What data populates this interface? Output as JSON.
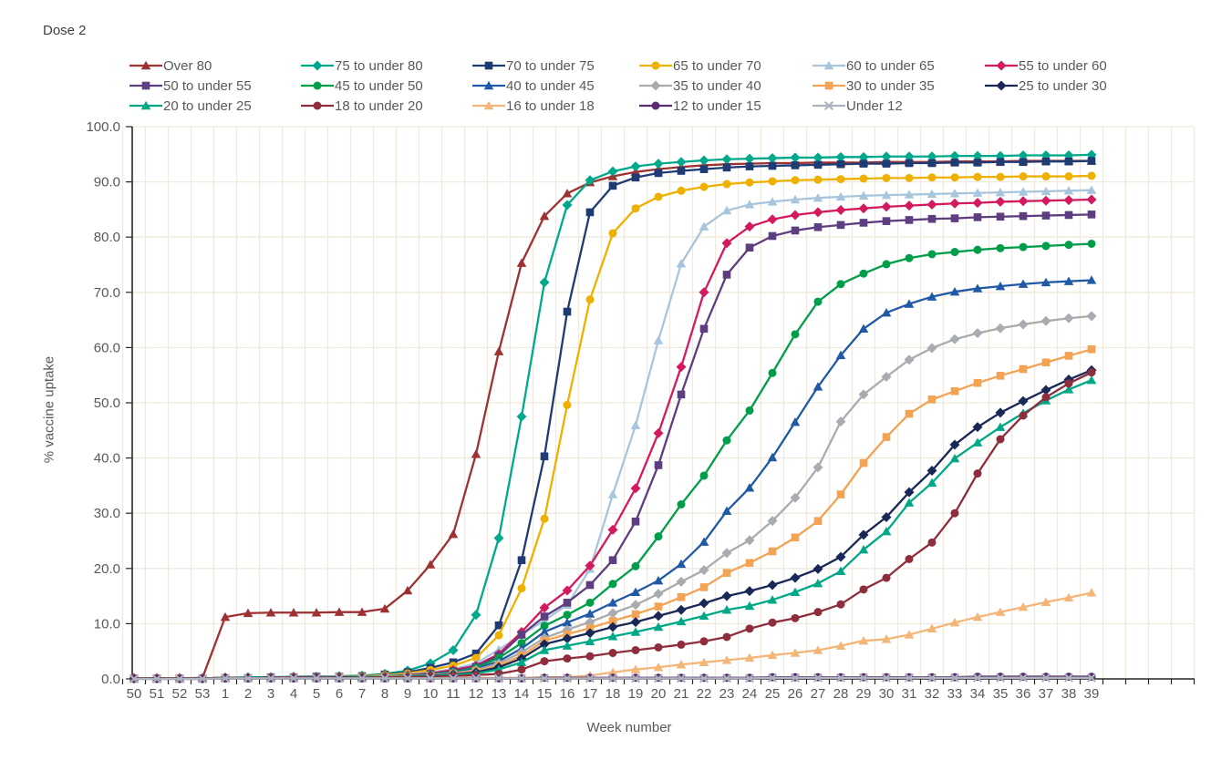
{
  "chart_data": {
    "type": "line",
    "title": "Dose 2",
    "xlabel": "Week number",
    "ylabel": "% vaccine uptake",
    "ylim": [
      0,
      100
    ],
    "y_tick_step": 10,
    "y_tick_decimals": 1,
    "grid": true,
    "legend_position": "top",
    "gridline_color": "#efe9de",
    "axis_color": "#262626",
    "tick_label_color": "#595959",
    "categories": [
      "50",
      "51",
      "52",
      "53",
      "1",
      "2",
      "3",
      "4",
      "5",
      "6",
      "7",
      "8",
      "9",
      "10",
      "11",
      "12",
      "13",
      "14",
      "15",
      "16",
      "17",
      "18",
      "19",
      "20",
      "21",
      "22",
      "23",
      "24",
      "25",
      "26",
      "27",
      "28",
      "29",
      "30",
      "31",
      "32",
      "33",
      "34",
      "35",
      "36",
      "37",
      "38",
      "39"
    ],
    "series": [
      {
        "name": "Over 80",
        "color": "#9E3132",
        "marker": "triangle",
        "values": [
          0.1,
          0.1,
          0.1,
          0.2,
          11.2,
          11.9,
          12.0,
          12.0,
          12.0,
          12.1,
          12.1,
          12.7,
          16.0,
          20.7,
          26.2,
          40.7,
          59.3,
          75.3,
          83.8,
          87.9,
          89.9,
          91.0,
          91.8,
          92.3,
          92.7,
          93.0,
          93.2,
          93.3,
          93.4,
          93.4,
          93.5,
          93.5,
          93.5,
          93.6,
          93.6,
          93.6,
          93.7,
          93.7,
          93.7,
          93.8,
          93.8,
          93.8,
          93.8
        ]
      },
      {
        "name": "75 to under 80",
        "color": "#00A88C",
        "marker": "diamond",
        "values": [
          0.1,
          0.1,
          0.1,
          0.1,
          0.2,
          0.3,
          0.3,
          0.4,
          0.4,
          0.5,
          0.6,
          0.9,
          1.5,
          2.8,
          5.2,
          11.6,
          25.5,
          47.5,
          71.8,
          85.8,
          90.3,
          91.9,
          92.8,
          93.3,
          93.6,
          93.9,
          94.1,
          94.2,
          94.3,
          94.4,
          94.4,
          94.5,
          94.5,
          94.6,
          94.6,
          94.6,
          94.7,
          94.7,
          94.7,
          94.8,
          94.8,
          94.8,
          94.9
        ]
      },
      {
        "name": "70 to under 75",
        "color": "#1F3B73",
        "marker": "square",
        "values": [
          0.1,
          0.1,
          0.1,
          0.1,
          0.2,
          0.2,
          0.3,
          0.3,
          0.4,
          0.4,
          0.5,
          0.8,
          1.2,
          2.0,
          3.0,
          4.6,
          9.7,
          21.5,
          40.3,
          66.5,
          84.5,
          89.3,
          90.8,
          91.6,
          92.0,
          92.3,
          92.6,
          92.8,
          92.9,
          93.0,
          93.1,
          93.2,
          93.3,
          93.3,
          93.4,
          93.4,
          93.5,
          93.5,
          93.6,
          93.6,
          93.7,
          93.7,
          93.8
        ]
      },
      {
        "name": "65 to under 70",
        "color": "#EFB000",
        "marker": "circle",
        "values": [
          0.1,
          0.1,
          0.1,
          0.1,
          0.2,
          0.2,
          0.2,
          0.3,
          0.3,
          0.4,
          0.5,
          0.7,
          1.0,
          1.6,
          2.4,
          3.8,
          7.9,
          16.4,
          29.0,
          49.6,
          68.7,
          80.7,
          85.2,
          87.3,
          88.4,
          89.1,
          89.6,
          89.9,
          90.1,
          90.3,
          90.4,
          90.5,
          90.6,
          90.7,
          90.7,
          90.8,
          90.8,
          90.9,
          90.9,
          91.0,
          91.0,
          91.0,
          91.1
        ]
      },
      {
        "name": "60 to under 65",
        "color": "#A7C6DD",
        "marker": "triangle",
        "values": [
          0.1,
          0.1,
          0.1,
          0.1,
          0.2,
          0.2,
          0.2,
          0.3,
          0.3,
          0.4,
          0.4,
          0.6,
          0.8,
          1.2,
          1.8,
          2.8,
          5.3,
          8.0,
          10.6,
          13.4,
          19.9,
          33.4,
          45.9,
          61.3,
          75.2,
          81.9,
          84.8,
          85.9,
          86.4,
          86.8,
          87.1,
          87.3,
          87.5,
          87.6,
          87.7,
          87.8,
          87.9,
          88.0,
          88.1,
          88.2,
          88.3,
          88.4,
          88.5
        ]
      },
      {
        "name": "55 to under 60",
        "color": "#D41A5F",
        "marker": "diamond",
        "values": [
          0.1,
          0.1,
          0.1,
          0.1,
          0.2,
          0.2,
          0.2,
          0.3,
          0.3,
          0.3,
          0.4,
          0.5,
          0.7,
          1.0,
          1.6,
          2.4,
          4.5,
          8.5,
          12.9,
          16.0,
          20.5,
          27.0,
          34.5,
          44.5,
          56.5,
          70.0,
          78.9,
          81.9,
          83.2,
          84.0,
          84.5,
          84.9,
          85.2,
          85.5,
          85.7,
          85.9,
          86.1,
          86.2,
          86.4,
          86.5,
          86.6,
          86.7,
          86.8
        ]
      },
      {
        "name": "50 to under 55",
        "color": "#5E3D80",
        "marker": "square",
        "values": [
          0.1,
          0.1,
          0.1,
          0.1,
          0.2,
          0.2,
          0.2,
          0.2,
          0.3,
          0.3,
          0.4,
          0.5,
          0.6,
          0.9,
          1.4,
          2.2,
          4.2,
          8.0,
          11.3,
          13.8,
          17.0,
          21.5,
          28.5,
          38.7,
          51.5,
          63.4,
          73.2,
          78.1,
          80.2,
          81.2,
          81.8,
          82.2,
          82.6,
          82.9,
          83.1,
          83.3,
          83.4,
          83.6,
          83.7,
          83.8,
          83.9,
          84.0,
          84.1
        ]
      },
      {
        "name": "45 to under 50",
        "color": "#009E49",
        "marker": "circle",
        "values": [
          0.1,
          0.1,
          0.1,
          0.1,
          0.2,
          0.2,
          0.2,
          0.2,
          0.3,
          0.3,
          0.4,
          0.5,
          0.6,
          0.8,
          1.2,
          2.0,
          3.8,
          6.5,
          9.6,
          11.6,
          13.8,
          17.2,
          20.4,
          25.8,
          31.6,
          36.8,
          43.2,
          48.6,
          55.4,
          62.4,
          68.3,
          71.5,
          73.4,
          75.1,
          76.2,
          76.9,
          77.3,
          77.7,
          78.0,
          78.2,
          78.4,
          78.6,
          78.8
        ]
      },
      {
        "name": "40 to under 45",
        "color": "#2059A5",
        "marker": "triangle",
        "values": [
          0.1,
          0.1,
          0.1,
          0.1,
          0.2,
          0.2,
          0.2,
          0.2,
          0.3,
          0.3,
          0.3,
          0.4,
          0.5,
          0.7,
          1.1,
          1.8,
          3.2,
          5.5,
          8.5,
          10.2,
          11.8,
          13.8,
          15.7,
          17.8,
          20.8,
          24.8,
          30.4,
          34.6,
          40.1,
          46.5,
          52.9,
          58.6,
          63.4,
          66.3,
          67.9,
          69.2,
          70.1,
          70.7,
          71.1,
          71.5,
          71.8,
          72.0,
          72.2
        ]
      },
      {
        "name": "35 to under 40",
        "color": "#A8ABAF",
        "marker": "diamond",
        "values": [
          0.1,
          0.1,
          0.1,
          0.1,
          0.2,
          0.2,
          0.2,
          0.2,
          0.2,
          0.3,
          0.3,
          0.4,
          0.5,
          0.7,
          1.0,
          1.6,
          2.8,
          4.8,
          7.4,
          8.9,
          10.3,
          11.9,
          13.4,
          15.4,
          17.6,
          19.7,
          22.8,
          25.1,
          28.6,
          32.8,
          38.3,
          46.6,
          51.5,
          54.7,
          57.8,
          59.9,
          61.5,
          62.6,
          63.5,
          64.2,
          64.8,
          65.3,
          65.7
        ]
      },
      {
        "name": "30 to under 35",
        "color": "#F2A354",
        "marker": "square",
        "values": [
          0.1,
          0.1,
          0.1,
          0.1,
          0.2,
          0.2,
          0.2,
          0.2,
          0.2,
          0.3,
          0.3,
          0.4,
          0.5,
          0.6,
          0.9,
          1.4,
          2.4,
          4.2,
          6.9,
          8.1,
          9.2,
          10.5,
          11.7,
          13.1,
          14.8,
          16.6,
          19.2,
          21.0,
          23.1,
          25.6,
          28.6,
          33.4,
          39.1,
          43.8,
          48.0,
          50.6,
          52.1,
          53.6,
          54.9,
          56.1,
          57.3,
          58.5,
          59.7
        ]
      },
      {
        "name": "25 to under 30",
        "color": "#1A2857",
        "marker": "diamond",
        "values": [
          0.1,
          0.1,
          0.1,
          0.1,
          0.2,
          0.2,
          0.2,
          0.2,
          0.2,
          0.3,
          0.3,
          0.3,
          0.4,
          0.6,
          0.8,
          1.2,
          2.1,
          3.7,
          6.3,
          7.3,
          8.3,
          9.4,
          10.3,
          11.4,
          12.5,
          13.7,
          15.0,
          15.9,
          17.0,
          18.3,
          19.9,
          22.1,
          26.1,
          29.3,
          33.8,
          37.7,
          42.4,
          45.6,
          48.2,
          50.3,
          52.3,
          54.2,
          55.9
        ]
      },
      {
        "name": "20 to under 25",
        "color": "#00A886",
        "marker": "triangle",
        "values": [
          0.1,
          0.1,
          0.1,
          0.1,
          0.1,
          0.2,
          0.2,
          0.2,
          0.2,
          0.2,
          0.3,
          0.3,
          0.4,
          0.5,
          0.7,
          1.0,
          1.7,
          3.0,
          5.2,
          6.0,
          6.8,
          7.7,
          8.5,
          9.4,
          10.4,
          11.4,
          12.5,
          13.2,
          14.3,
          15.7,
          17.3,
          19.5,
          23.4,
          26.7,
          31.9,
          35.5,
          39.9,
          42.8,
          45.6,
          48.1,
          50.4,
          52.4,
          54.1
        ]
      },
      {
        "name": "18 to under 20",
        "color": "#8E2D3C",
        "marker": "circle",
        "values": [
          0.1,
          0.1,
          0.1,
          0.1,
          0.1,
          0.1,
          0.2,
          0.2,
          0.2,
          0.2,
          0.2,
          0.3,
          0.3,
          0.4,
          0.5,
          0.7,
          0.9,
          1.7,
          3.2,
          3.7,
          4.1,
          4.7,
          5.2,
          5.7,
          6.2,
          6.8,
          7.6,
          9.1,
          10.2,
          11.0,
          12.1,
          13.5,
          16.2,
          18.3,
          21.7,
          24.7,
          30.0,
          37.2,
          43.4,
          47.7,
          51.0,
          53.5,
          55.5
        ]
      },
      {
        "name": "16 to under 18",
        "color": "#F4B678",
        "marker": "triangle",
        "values": [
          0.0,
          0.0,
          0.0,
          0.0,
          0.1,
          0.1,
          0.1,
          0.1,
          0.1,
          0.1,
          0.1,
          0.1,
          0.1,
          0.1,
          0.2,
          0.2,
          0.2,
          0.2,
          0.3,
          0.3,
          0.6,
          1.2,
          1.7,
          2.1,
          2.6,
          3.0,
          3.4,
          3.8,
          4.3,
          4.7,
          5.2,
          6.0,
          6.9,
          7.2,
          8.0,
          9.1,
          10.2,
          11.2,
          12.1,
          13.0,
          13.9,
          14.7,
          15.6
        ]
      },
      {
        "name": "12 to under 15",
        "color": "#5B2D72",
        "marker": "circle",
        "values": [
          0.0,
          0.0,
          0.0,
          0.0,
          0.1,
          0.1,
          0.1,
          0.1,
          0.1,
          0.1,
          0.1,
          0.1,
          0.1,
          0.1,
          0.1,
          0.1,
          0.1,
          0.1,
          0.2,
          0.2,
          0.2,
          0.2,
          0.2,
          0.2,
          0.2,
          0.2,
          0.2,
          0.2,
          0.3,
          0.3,
          0.3,
          0.3,
          0.3,
          0.3,
          0.3,
          0.3,
          0.3,
          0.4,
          0.4,
          0.4,
          0.4,
          0.4,
          0.4
        ]
      },
      {
        "name": "Under 12",
        "color": "#ADB3BC",
        "marker": "x",
        "values": [
          0.0,
          0.0,
          0.0,
          0.0,
          0.1,
          0.1,
          0.1,
          0.1,
          0.1,
          0.1,
          0.1,
          0.1,
          0.1,
          0.1,
          0.1,
          0.1,
          0.1,
          0.1,
          0.1,
          0.1,
          0.1,
          0.1,
          0.1,
          0.1,
          0.1,
          0.1,
          0.1,
          0.1,
          0.2,
          0.2,
          0.2,
          0.2,
          0.2,
          0.2,
          0.2,
          0.2,
          0.2,
          0.2,
          0.2,
          0.2,
          0.2,
          0.2,
          0.2
        ]
      }
    ]
  }
}
